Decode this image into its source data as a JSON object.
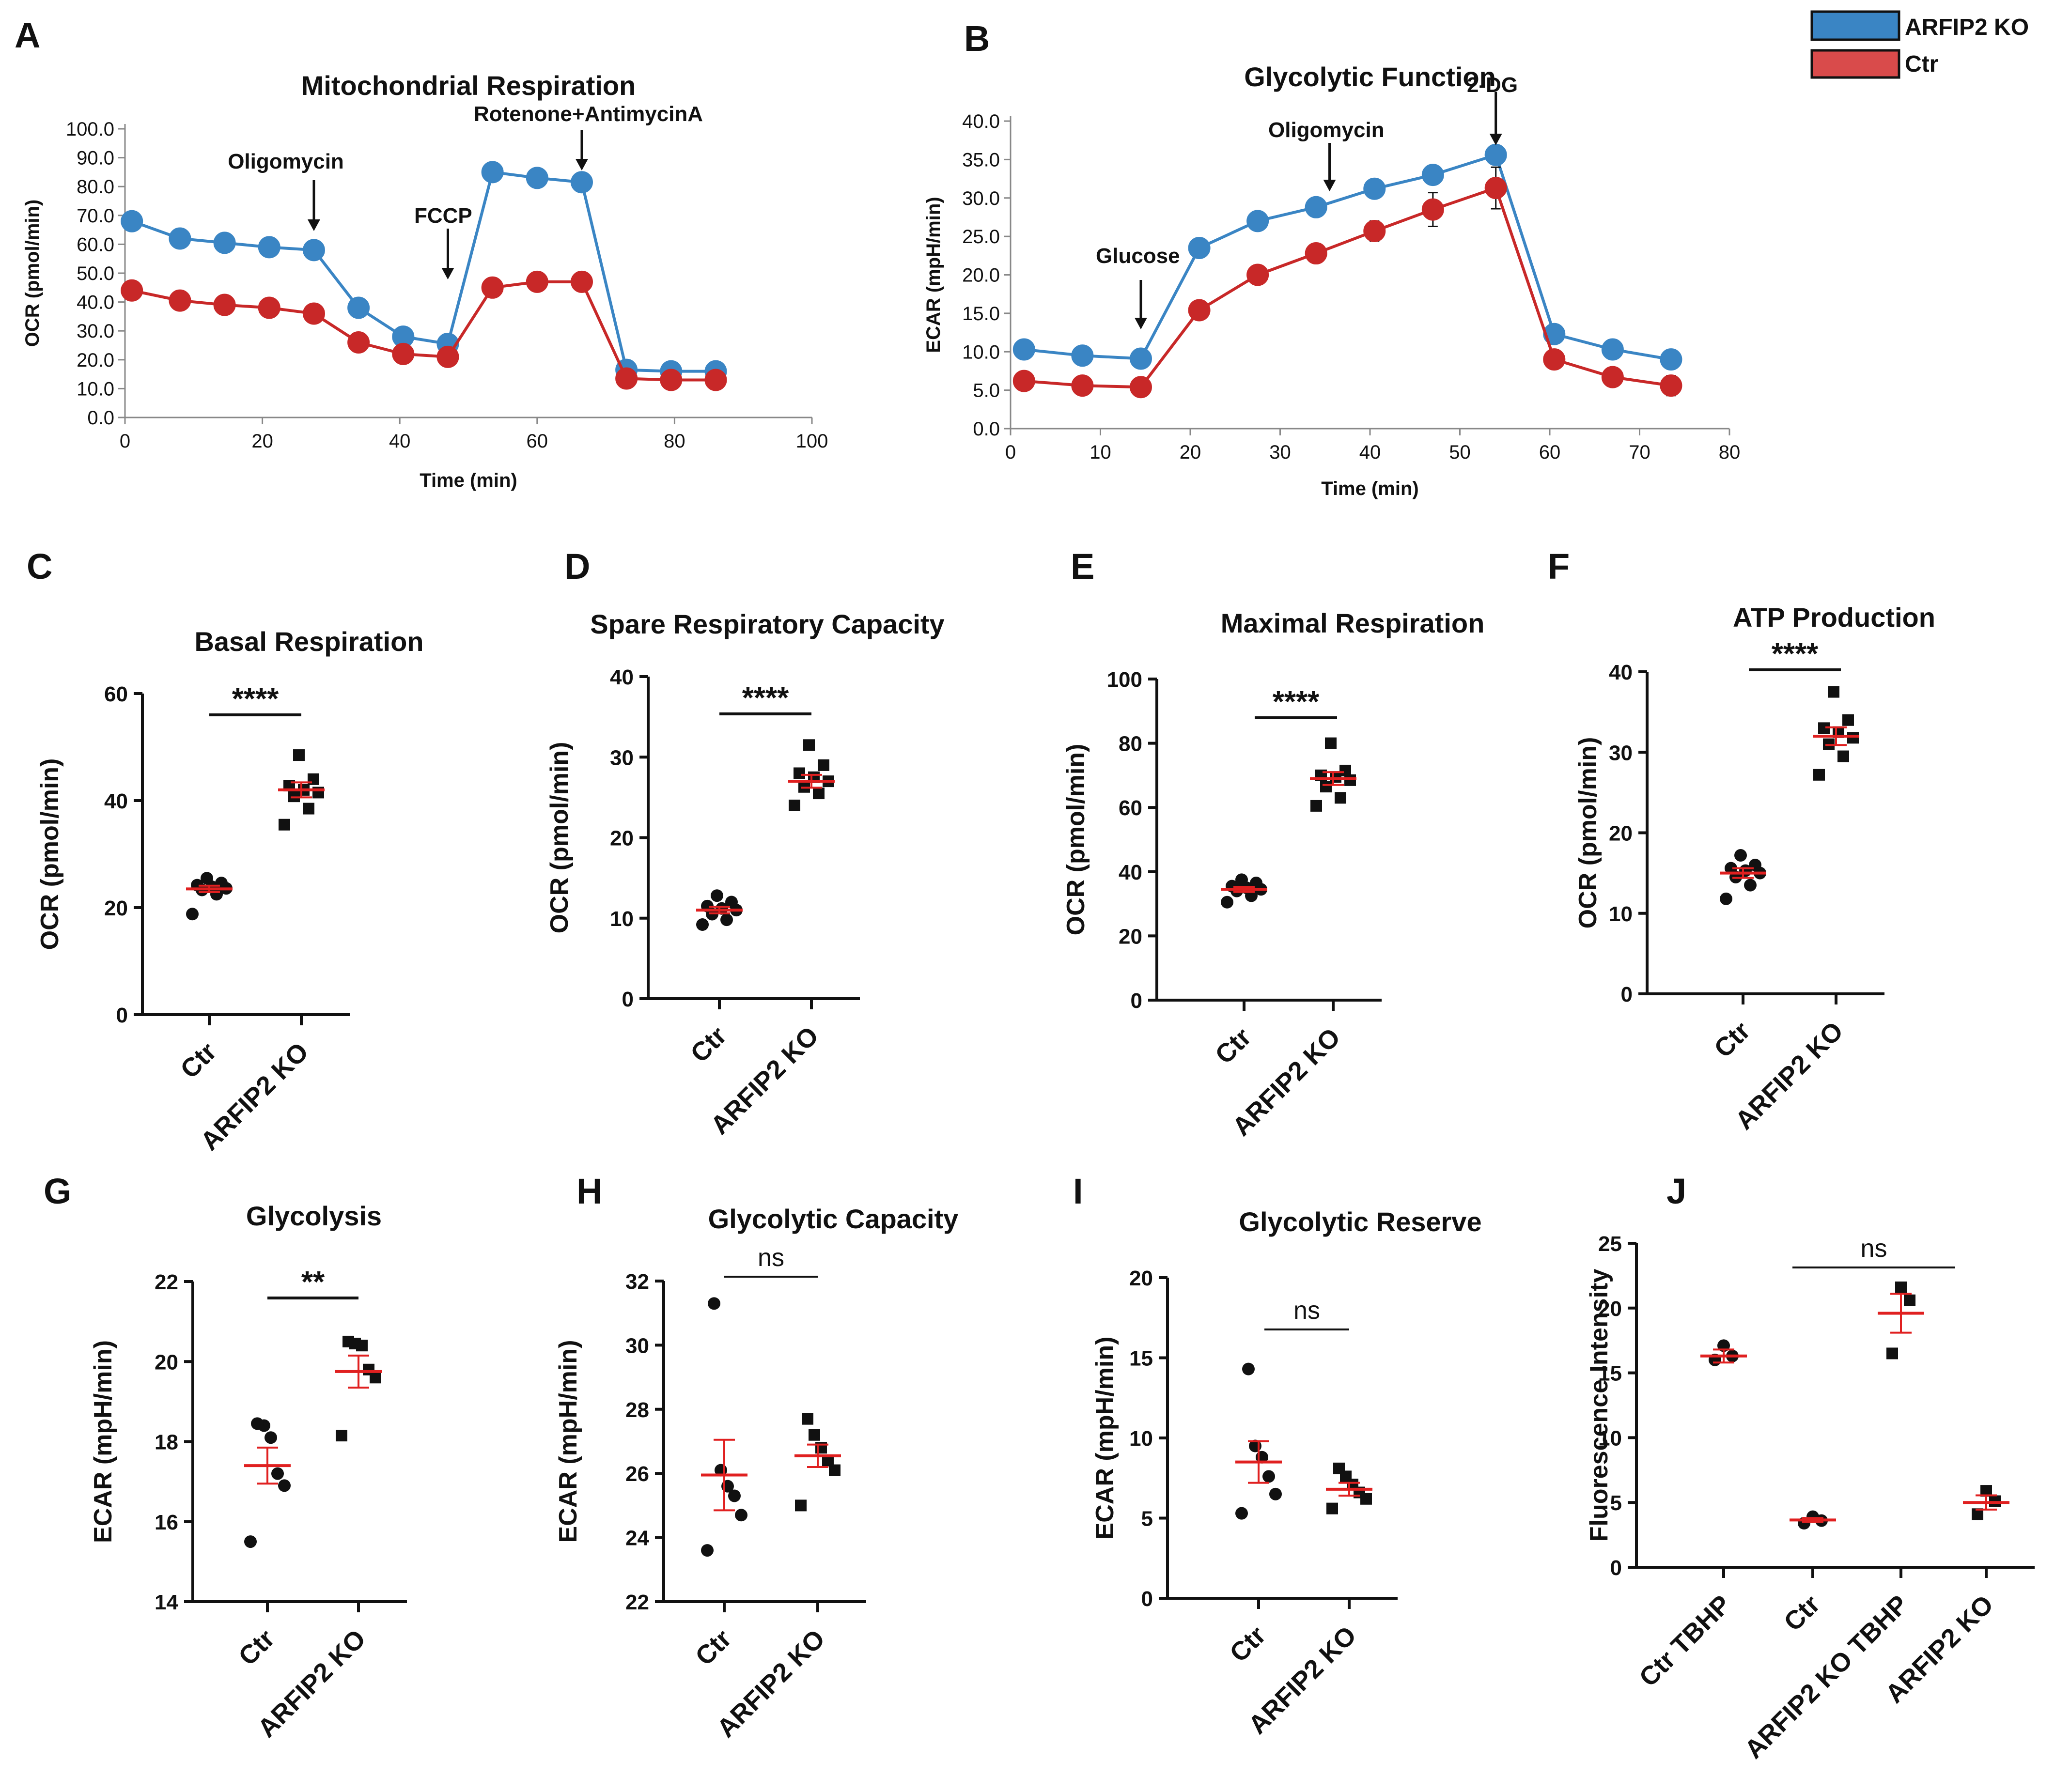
{
  "panel_letters": [
    "A",
    "B",
    "C",
    "D",
    "E",
    "F",
    "G",
    "H",
    "I",
    "J"
  ],
  "legend": [
    {
      "label": "ARFIP2 KO",
      "color": "#3a85c4"
    },
    {
      "label": "Ctr",
      "color": "#d94b4b"
    }
  ],
  "colors": {
    "ko": "#3a85c4",
    "ctr": "#c82828",
    "mean": "#e02020",
    "dot": "#111111"
  },
  "chart_data": [
    {
      "id": "A",
      "type": "line",
      "title": "Mitochondrial Respiration",
      "xlabel": "Time (min)",
      "ylabel": "OCR (pmol/min)",
      "xlim": [
        0,
        100
      ],
      "ylim": [
        0,
        100
      ],
      "xticks": [
        0,
        20,
        40,
        60,
        80,
        100
      ],
      "yticks": [
        "0.0",
        "10.0",
        "20.0",
        "30.0",
        "40.0",
        "50.0",
        "60.0",
        "70.0",
        "80.0",
        "90.0",
        "100.0"
      ],
      "x": [
        1,
        8,
        14.5,
        21,
        27.5,
        34,
        40.5,
        47,
        53.5,
        60,
        66.5,
        73,
        79.5,
        86
      ],
      "series": [
        {
          "name": "ARFIP2 KO",
          "values": [
            68,
            62,
            60.5,
            59,
            58,
            38,
            28,
            25.5,
            85,
            83,
            81.5,
            16.5,
            16,
            16
          ]
        },
        {
          "name": "Ctr",
          "values": [
            44,
            40.5,
            39,
            38,
            36,
            26,
            22,
            21,
            45,
            47,
            47,
            13.5,
            13,
            13
          ]
        }
      ],
      "annotations": [
        {
          "text": "Oligomycin",
          "x": 27.5,
          "value": 58
        },
        {
          "text": "FCCP",
          "x": 47,
          "value": 25.5
        },
        {
          "text": "Rotenone+AntimycinA",
          "x": 66.5,
          "value": 81.5
        }
      ]
    },
    {
      "id": "B",
      "type": "line",
      "title": "Glycolytic Function",
      "xlabel": "Time (min)",
      "ylabel": "ECAR (mpH/min)",
      "xlim": [
        0,
        80
      ],
      "ylim": [
        0,
        40
      ],
      "xticks": [
        0,
        10,
        20,
        30,
        40,
        50,
        60,
        70,
        80
      ],
      "yticks": [
        "0.0",
        "5.0",
        "10.0",
        "15.0",
        "20.0",
        "25.0",
        "30.0",
        "35.0",
        "40.0"
      ],
      "x": [
        1.5,
        8,
        14.5,
        21,
        27.5,
        34,
        40.5,
        47,
        54,
        60.5,
        67,
        73.5
      ],
      "series": [
        {
          "name": "ARFIP2 KO",
          "values": [
            10.3,
            9.5,
            9.1,
            23.5,
            27,
            28.8,
            31.2,
            33,
            35.6,
            12.3,
            10.3,
            9
          ]
        },
        {
          "name": "Ctr",
          "values": [
            6.2,
            5.6,
            5.4,
            15.4,
            20,
            22.8,
            25.7,
            28.5,
            31.3,
            9,
            6.7,
            5.6
          ]
        }
      ],
      "errors": [
        [
          0.3,
          0.3,
          0.3,
          0.4,
          0.4,
          0.5,
          0.5,
          0.5,
          0.6,
          0.4,
          0.4,
          0.5
        ],
        [
          0.4,
          0.3,
          0.3,
          0.6,
          0.9,
          1.2,
          1.3,
          2.2,
          2.7,
          0.6,
          0.6,
          1.3
        ]
      ],
      "annotations": [
        {
          "text": "Glucose",
          "x": 14.5,
          "value": 9.1
        },
        {
          "text": "Oligomycin",
          "x": 35.5,
          "value": 28.8
        },
        {
          "text": "2-DG",
          "x": 54,
          "value": 35.6
        }
      ]
    },
    {
      "id": "C",
      "type": "scatter",
      "title": "Basal Respiration",
      "ylabel": "OCR (pmol/min)",
      "ylim": [
        0,
        60
      ],
      "yticks": [
        0,
        20,
        40,
        60
      ],
      "categories": [
        "Ctr",
        "ARFIP2 KO"
      ],
      "groups": [
        {
          "name": "Ctr",
          "marker": "circle",
          "values": [
            18.8,
            22.5,
            23.3,
            23.6,
            23.9,
            24.2,
            24.6,
            25.5
          ],
          "mean": 23.5,
          "sem": 0.6
        },
        {
          "name": "ARFIP2 KO",
          "marker": "square",
          "values": [
            35.5,
            38.5,
            40.8,
            41.5,
            42,
            42.8,
            44,
            48.5
          ],
          "mean": 42,
          "sem": 1.4
        }
      ],
      "significance": "****"
    },
    {
      "id": "D",
      "type": "scatter",
      "title": "Spare Respiratory Capacity",
      "ylabel": "OCR (pmol/min)",
      "ylim": [
        0,
        40
      ],
      "yticks": [
        0,
        10,
        20,
        30,
        40
      ],
      "categories": [
        "Ctr",
        "ARFIP2 KO"
      ],
      "groups": [
        {
          "name": "Ctr",
          "marker": "circle",
          "values": [
            9.2,
            9.8,
            10.5,
            11,
            11.2,
            11.5,
            12,
            12.8
          ],
          "mean": 11,
          "sem": 0.4
        },
        {
          "name": "ARFIP2 KO",
          "marker": "square",
          "values": [
            24,
            25.5,
            26.3,
            27,
            27.5,
            28,
            29,
            31.5
          ],
          "mean": 27,
          "sem": 0.8
        }
      ],
      "significance": "****"
    },
    {
      "id": "E",
      "type": "scatter",
      "title": "Maximal Respiration",
      "ylabel": "OCR (pmol/min)",
      "ylim": [
        0,
        100
      ],
      "yticks": [
        0,
        20,
        40,
        60,
        80,
        100
      ],
      "categories": [
        "Ctr",
        "ARFIP2 KO"
      ],
      "groups": [
        {
          "name": "Ctr",
          "marker": "circle",
          "values": [
            30.5,
            32.5,
            34,
            34.5,
            35,
            35.5,
            36.5,
            37.5
          ],
          "mean": 34.5,
          "sem": 0.8
        },
        {
          "name": "ARFIP2 KO",
          "marker": "square",
          "values": [
            60.5,
            63,
            66.5,
            68.5,
            69.5,
            70,
            71.5,
            80
          ],
          "mean": 69,
          "sem": 2
        }
      ],
      "significance": "****"
    },
    {
      "id": "F",
      "type": "scatter",
      "title": "ATP Production",
      "ylabel": "OCR (pmol/min)",
      "ylim": [
        0,
        40
      ],
      "yticks": [
        0,
        10,
        20,
        30,
        40
      ],
      "categories": [
        "Ctr",
        "ARFIP2 KO"
      ],
      "groups": [
        {
          "name": "Ctr",
          "marker": "circle",
          "values": [
            11.8,
            13.5,
            14.5,
            15,
            15.3,
            15.6,
            16,
            17.2
          ],
          "mean": 15,
          "sem": 0.6
        },
        {
          "name": "ARFIP2 KO",
          "marker": "square",
          "values": [
            27.2,
            29.5,
            31,
            31.8,
            32.5,
            33,
            34,
            37.5
          ],
          "mean": 32,
          "sem": 1.1
        }
      ],
      "significance": "****"
    },
    {
      "id": "G",
      "type": "scatter",
      "title": "Glycolysis",
      "ylabel": "ECAR (mpH/min)",
      "ylim": [
        14,
        22
      ],
      "yticks": [
        14,
        16,
        18,
        20,
        22
      ],
      "categories": [
        "Ctr",
        "ARFIP2 KO"
      ],
      "groups": [
        {
          "name": "Ctr",
          "marker": "circle",
          "values": [
            15.5,
            16.9,
            17.2,
            18.1,
            18.4,
            18.45
          ],
          "mean": 17.4,
          "sem": 0.45
        },
        {
          "name": "ARFIP2 KO",
          "marker": "square",
          "values": [
            18.15,
            19.6,
            19.8,
            20.4,
            20.45,
            20.5
          ],
          "mean": 19.75,
          "sem": 0.4
        }
      ],
      "significance": "**"
    },
    {
      "id": "H",
      "type": "scatter",
      "title": "Glycolytic Capacity",
      "ylabel": "ECAR (mpH/min)",
      "ylim": [
        22,
        32
      ],
      "yticks": [
        22,
        24,
        26,
        28,
        30,
        32
      ],
      "categories": [
        "Ctr",
        "ARFIP2 KO"
      ],
      "groups": [
        {
          "name": "Ctr",
          "marker": "circle",
          "values": [
            23.6,
            24.7,
            25.3,
            25.6,
            26.1,
            31.3
          ],
          "mean": 25.95,
          "sem": 1.1
        },
        {
          "name": "ARFIP2 KO",
          "marker": "square",
          "values": [
            25,
            26.1,
            26.4,
            26.8,
            27.2,
            27.7
          ],
          "mean": 26.55,
          "sem": 0.35
        }
      ],
      "significance": "ns"
    },
    {
      "id": "I",
      "type": "scatter",
      "title": "Glycolytic Reserve",
      "ylabel": "ECAR (mpH/min)",
      "ylim": [
        0,
        20
      ],
      "yticks": [
        0,
        5,
        10,
        15,
        20
      ],
      "categories": [
        "Ctr",
        "ARFIP2 KO"
      ],
      "groups": [
        {
          "name": "Ctr",
          "marker": "circle",
          "values": [
            5.3,
            6.5,
            7.6,
            8.8,
            9.5,
            14.3
          ],
          "mean": 8.5,
          "sem": 1.3
        },
        {
          "name": "ARFIP2 KO",
          "marker": "square",
          "values": [
            5.6,
            6.2,
            6.6,
            7.1,
            7.6,
            8.1
          ],
          "mean": 6.8,
          "sem": 0.4
        }
      ],
      "significance": "ns"
    },
    {
      "id": "J",
      "type": "scatter",
      "title": "",
      "ylabel": "Fluorescence Intensity",
      "ylim": [
        0,
        25
      ],
      "yticks": [
        0,
        5,
        10,
        15,
        20,
        25
      ],
      "categories": [
        "Ctr TBHP",
        "Ctr",
        "ARFIP2 KO TBHP",
        "ARFIP2 KO"
      ],
      "groups": [
        {
          "name": "Ctr TBHP",
          "marker": "circle",
          "values": [
            16,
            16.3,
            17.1
          ],
          "mean": 16.3,
          "sem": 0.5
        },
        {
          "name": "Ctr",
          "marker": "circle",
          "values": [
            3.4,
            3.6,
            3.9
          ],
          "mean": 3.65,
          "sem": 0.15
        },
        {
          "name": "ARFIP2 KO TBHP",
          "marker": "square",
          "values": [
            16.5,
            20.6,
            21.6
          ],
          "mean": 19.6,
          "sem": 1.5
        },
        {
          "name": "ARFIP2 KO",
          "marker": "square",
          "values": [
            4.1,
            5.1,
            5.9
          ],
          "mean": 5,
          "sem": 0.55
        }
      ],
      "significance": "ns"
    }
  ]
}
